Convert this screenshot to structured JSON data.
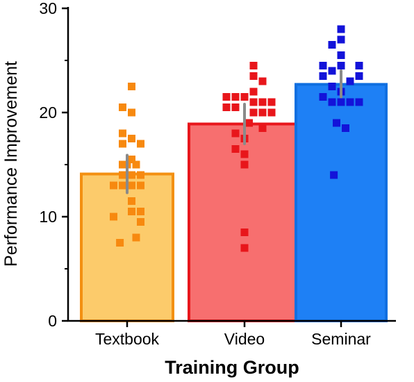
{
  "chart_data": {
    "type": "bar",
    "xlabel": "Training Group",
    "ylabel": "Performance Improvement",
    "ylim": [
      0,
      30
    ],
    "yticks": [
      "0",
      "10",
      "20",
      "30"
    ],
    "grid": false,
    "categories": [
      "Textbook",
      "Video",
      "Seminar"
    ],
    "values": [
      14.1,
      18.9,
      22.7
    ],
    "error_bars": [
      {
        "low": 12.3,
        "high": 15.9
      },
      {
        "low": 17.0,
        "high": 20.8
      },
      {
        "low": 21.5,
        "high": 24.0
      }
    ],
    "colors": [
      {
        "fill": "#fccb6b",
        "stroke": "#f39012",
        "point": "#f7890f"
      },
      {
        "fill": "#f76f6f",
        "stroke": "#e8161b",
        "point": "#e8161b"
      },
      {
        "fill": "#1e80f5",
        "stroke": "#0f6fe0",
        "point": "#1313d9"
      }
    ],
    "error_bar_color": "#8a8a8a",
    "points": [
      [
        {
          "x": -0.5,
          "y": 20.5
        },
        {
          "x": 0.5,
          "y": 22.5
        },
        {
          "x": 0.5,
          "y": 20.0
        },
        {
          "x": -0.5,
          "y": 18.0
        },
        {
          "x": 0.5,
          "y": 17.5
        },
        {
          "x": 1.5,
          "y": 17.0
        },
        {
          "x": -0.5,
          "y": 17.0
        },
        {
          "x": 0.5,
          "y": 15.5
        },
        {
          "x": -0.5,
          "y": 15.0
        },
        {
          "x": 0.0,
          "y": 15.0
        },
        {
          "x": 1.0,
          "y": 15.0
        },
        {
          "x": -0.5,
          "y": 14.0
        },
        {
          "x": 0.0,
          "y": 14.0
        },
        {
          "x": 0.5,
          "y": 14.0
        },
        {
          "x": 1.5,
          "y": 14.0
        },
        {
          "x": -1.5,
          "y": 13.0
        },
        {
          "x": -0.5,
          "y": 13.0
        },
        {
          "x": 0.5,
          "y": 13.0
        },
        {
          "x": 1.5,
          "y": 13.0
        },
        {
          "x": 0.5,
          "y": 11.5
        },
        {
          "x": 0.5,
          "y": 10.5
        },
        {
          "x": 1.5,
          "y": 10.5
        },
        {
          "x": -1.5,
          "y": 10.0
        },
        {
          "x": 1.5,
          "y": 9.5
        },
        {
          "x": 1.0,
          "y": 8.0
        },
        {
          "x": -0.8,
          "y": 7.5
        }
      ],
      [
        {
          "x": 1.0,
          "y": 24.5
        },
        {
          "x": 1.0,
          "y": 23.5
        },
        {
          "x": 2.0,
          "y": 23.0
        },
        {
          "x": -2.0,
          "y": 21.5
        },
        {
          "x": -1.0,
          "y": 21.5
        },
        {
          "x": 0.0,
          "y": 21.5
        },
        {
          "x": 1.0,
          "y": 22.0
        },
        {
          "x": 1.0,
          "y": 21.0
        },
        {
          "x": 2.0,
          "y": 21.0
        },
        {
          "x": 3.0,
          "y": 21.0
        },
        {
          "x": -2.0,
          "y": 20.5
        },
        {
          "x": -1.0,
          "y": 20.5
        },
        {
          "x": 1.0,
          "y": 20.0
        },
        {
          "x": 2.0,
          "y": 20.0
        },
        {
          "x": 3.0,
          "y": 20.0
        },
        {
          "x": 0.5,
          "y": 19.0
        },
        {
          "x": 2.0,
          "y": 18.5
        },
        {
          "x": -1.0,
          "y": 18.0
        },
        {
          "x": 0.0,
          "y": 17.5
        },
        {
          "x": -1.0,
          "y": 16.5
        },
        {
          "x": 0.0,
          "y": 16.0
        },
        {
          "x": 0.0,
          "y": 15.0
        },
        {
          "x": 0.0,
          "y": 8.5
        },
        {
          "x": 0.0,
          "y": 7.0
        }
      ],
      [
        {
          "x": 0.0,
          "y": 28.0
        },
        {
          "x": 0.0,
          "y": 27.0
        },
        {
          "x": -1.0,
          "y": 26.5
        },
        {
          "x": 0.0,
          "y": 25.5
        },
        {
          "x": -2.0,
          "y": 24.5
        },
        {
          "x": 0.0,
          "y": 24.5
        },
        {
          "x": 2.0,
          "y": 24.5
        },
        {
          "x": -2.0,
          "y": 23.5
        },
        {
          "x": -1.0,
          "y": 24.0
        },
        {
          "x": 2.0,
          "y": 23.5
        },
        {
          "x": 1.0,
          "y": 23.0
        },
        {
          "x": -1.0,
          "y": 22.5
        },
        {
          "x": 0.0,
          "y": 22.0
        },
        {
          "x": -2.0,
          "y": 21.5
        },
        {
          "x": -1.0,
          "y": 21.0
        },
        {
          "x": 0.0,
          "y": 21.0
        },
        {
          "x": 1.0,
          "y": 21.0
        },
        {
          "x": 2.0,
          "y": 21.0
        },
        {
          "x": -0.5,
          "y": 19.0
        },
        {
          "x": 0.5,
          "y": 18.5
        },
        {
          "x": -0.8,
          "y": 14.0
        }
      ]
    ]
  }
}
